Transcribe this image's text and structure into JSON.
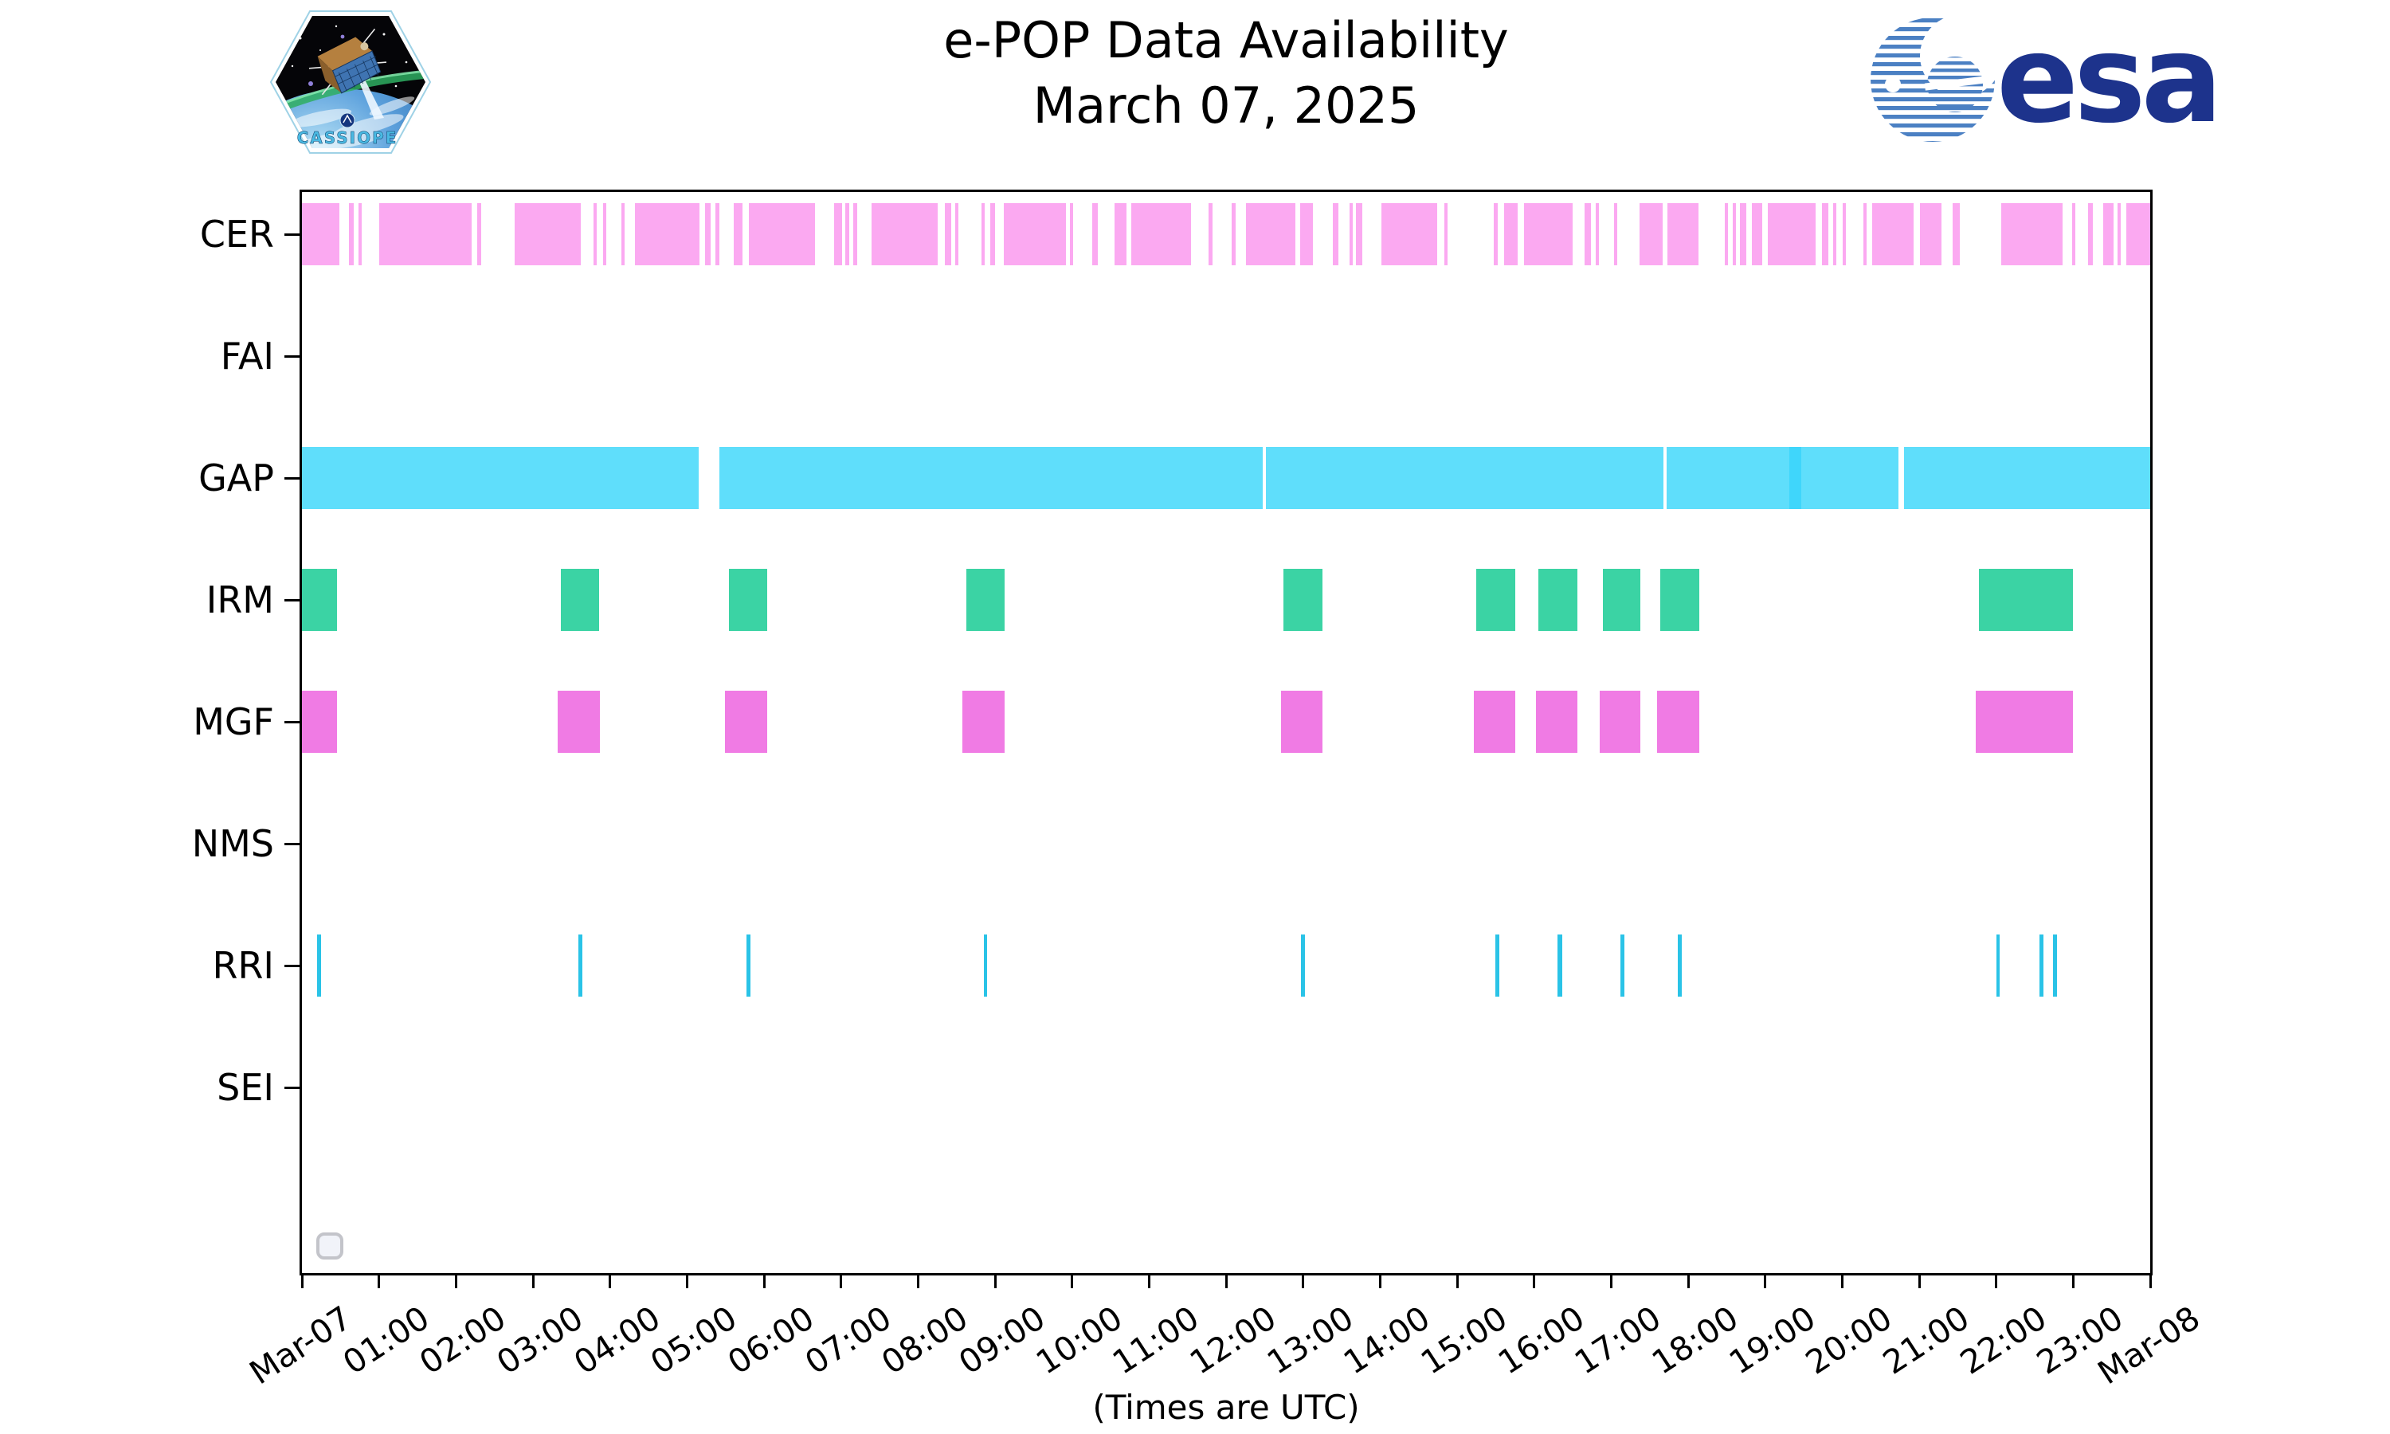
{
  "header": {
    "title_line1": "e-POP Data Availability",
    "title_line2": "March 07, 2025",
    "patch_text": "CASSIOPE",
    "esa_text": "esa"
  },
  "chart_data": {
    "type": "gantt",
    "title": "e-POP Data Availability March 07, 2025",
    "xlabel": "(Times are UTC)",
    "x_unit": "hours since Mar-07 00:00 UTC",
    "x_range_hours": [
      0,
      24
    ],
    "x_tick_labels": [
      "Mar-07",
      "01:00",
      "02:00",
      "03:00",
      "04:00",
      "05:00",
      "06:00",
      "07:00",
      "08:00",
      "09:00",
      "10:00",
      "11:00",
      "12:00",
      "13:00",
      "14:00",
      "15:00",
      "16:00",
      "17:00",
      "18:00",
      "19:00",
      "20:00",
      "21:00",
      "22:00",
      "23:00",
      "Mar-08"
    ],
    "grid": false,
    "legend": "none",
    "rows": [
      {
        "label": "CER",
        "color": "#fba9f1",
        "intervals": [
          [
            0,
            0.49
          ],
          [
            0.61,
            0.67
          ],
          [
            0.73,
            0.78
          ],
          [
            1.0,
            2.2
          ],
          [
            2.28,
            2.33
          ],
          [
            2.76,
            3.62
          ],
          [
            3.79,
            3.83
          ],
          [
            3.91,
            3.95
          ],
          [
            4.15,
            4.19
          ],
          [
            4.32,
            5.16
          ],
          [
            5.23,
            5.31
          ],
          [
            5.37,
            5.42
          ],
          [
            5.61,
            5.72
          ],
          [
            5.8,
            6.66
          ],
          [
            6.91,
            7.01
          ],
          [
            7.06,
            7.11
          ],
          [
            7.16,
            7.21
          ],
          [
            7.4,
            8.26
          ],
          [
            8.35,
            8.43
          ],
          [
            8.48,
            8.52
          ],
          [
            8.82,
            8.87
          ],
          [
            8.94,
            9.0
          ],
          [
            9.11,
            9.92
          ],
          [
            9.97,
            10.01
          ],
          [
            10.26,
            10.33
          ],
          [
            10.55,
            10.71
          ],
          [
            10.77,
            11.54
          ],
          [
            11.77,
            11.82
          ],
          [
            12.07,
            12.12
          ],
          [
            12.26,
            12.9
          ],
          [
            12.96,
            13.13
          ],
          [
            13.39,
            13.46
          ],
          [
            13.6,
            13.64
          ],
          [
            13.69,
            13.77
          ],
          [
            14.02,
            14.74
          ],
          [
            14.83,
            14.88
          ],
          [
            15.48,
            15.53
          ],
          [
            15.61,
            15.79
          ],
          [
            15.87,
            16.5
          ],
          [
            16.66,
            16.74
          ],
          [
            16.8,
            16.84
          ],
          [
            17.04,
            17.07
          ],
          [
            17.37,
            17.67
          ],
          [
            17.73,
            18.13
          ],
          [
            18.48,
            18.51
          ],
          [
            18.58,
            18.62
          ],
          [
            18.67,
            18.76
          ],
          [
            18.83,
            18.96
          ],
          [
            19.03,
            19.66
          ],
          [
            19.74,
            19.82
          ],
          [
            19.88,
            19.92
          ],
          [
            20.01,
            20.05
          ],
          [
            20.28,
            20.31
          ],
          [
            20.39,
            20.93
          ],
          [
            21.01,
            21.29
          ],
          [
            21.43,
            21.53
          ],
          [
            22.07,
            22.86
          ],
          [
            22.99,
            23.03
          ],
          [
            23.19,
            23.26
          ],
          [
            23.39,
            23.52
          ],
          [
            23.58,
            23.62
          ],
          [
            23.69,
            24.0
          ]
        ]
      },
      {
        "label": "FAI",
        "color": null,
        "intervals": []
      },
      {
        "label": "GAP",
        "color": "#5fdefb",
        "intervals": [
          [
            0,
            5.15
          ],
          [
            5.42,
            12.48
          ],
          [
            12.52,
            17.68
          ],
          [
            17.72,
            20.73
          ],
          [
            20.8,
            24.0
          ]
        ],
        "overlay_color": "#3fd6fb",
        "overlay_intervals": [
          [
            19.31,
            19.47
          ]
        ]
      },
      {
        "label": "IRM",
        "color": "#3bd3a4",
        "intervals": [
          [
            0,
            0.45
          ],
          [
            3.36,
            3.86
          ],
          [
            5.54,
            6.04
          ],
          [
            8.63,
            9.12
          ],
          [
            12.74,
            13.25
          ],
          [
            15.25,
            15.76
          ],
          [
            16.06,
            16.56
          ],
          [
            16.89,
            17.38
          ],
          [
            17.64,
            18.14
          ],
          [
            21.78,
            23.0
          ]
        ]
      },
      {
        "label": "MGF",
        "color": "#f07be4",
        "intervals": [
          [
            0,
            0.45
          ],
          [
            3.32,
            3.87
          ],
          [
            5.49,
            6.04
          ],
          [
            8.58,
            9.12
          ],
          [
            12.71,
            13.25
          ],
          [
            15.22,
            15.76
          ],
          [
            16.02,
            16.56
          ],
          [
            16.85,
            17.38
          ],
          [
            17.6,
            18.14
          ],
          [
            21.73,
            23.0
          ]
        ]
      },
      {
        "label": "NMS",
        "color": null,
        "intervals": []
      },
      {
        "label": "RRI",
        "color": "#2ac3e7",
        "intervals": [
          [
            0.2,
            0.25
          ],
          [
            3.59,
            3.64
          ],
          [
            5.77,
            5.82
          ],
          [
            8.85,
            8.9
          ],
          [
            12.97,
            13.02
          ],
          [
            15.5,
            15.55
          ],
          [
            16.3,
            16.37
          ],
          [
            17.12,
            17.17
          ],
          [
            17.87,
            17.92
          ],
          [
            22.0,
            22.05
          ],
          [
            22.56,
            22.61
          ],
          [
            22.74,
            22.79
          ]
        ]
      },
      {
        "label": "SEI",
        "color": null,
        "intervals": []
      }
    ]
  }
}
